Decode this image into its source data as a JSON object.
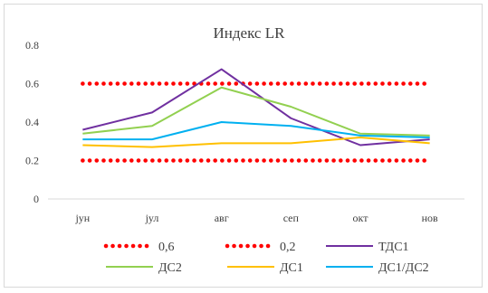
{
  "chart_data": {
    "type": "line",
    "title": "Индекс LR",
    "xlabel": "",
    "ylabel": "",
    "categories": [
      "јун",
      "јул",
      "авг",
      "сеп",
      "окт",
      "нов"
    ],
    "ylim": [
      0,
      0.8
    ],
    "yticks": [
      "0",
      "0.2",
      "0.4",
      "0.6",
      "0.8"
    ],
    "grid": false,
    "legend_position": "bottom",
    "series": [
      {
        "name": "0,6",
        "values": [
          0.6,
          0.6,
          0.6,
          0.6,
          0.6,
          0.6
        ],
        "color": "#ff0000",
        "style": "dotted"
      },
      {
        "name": "0,2",
        "values": [
          0.2,
          0.2,
          0.2,
          0.2,
          0.2,
          0.2
        ],
        "color": "#ff0000",
        "style": "dotted"
      },
      {
        "name": "ТДС1",
        "values": [
          0.36,
          0.45,
          0.675,
          0.42,
          0.28,
          0.31
        ],
        "color": "#7030a0",
        "style": "solid"
      },
      {
        "name": "ДС2",
        "values": [
          0.34,
          0.38,
          0.58,
          0.48,
          0.34,
          0.33
        ],
        "color": "#92d050",
        "style": "solid"
      },
      {
        "name": "ДС1",
        "values": [
          0.28,
          0.27,
          0.29,
          0.29,
          0.32,
          0.29
        ],
        "color": "#ffc000",
        "style": "solid"
      },
      {
        "name": "ДС1/ДС2",
        "values": [
          0.31,
          0.31,
          0.4,
          0.38,
          0.33,
          0.32
        ],
        "color": "#00b0f0",
        "style": "solid"
      }
    ]
  }
}
